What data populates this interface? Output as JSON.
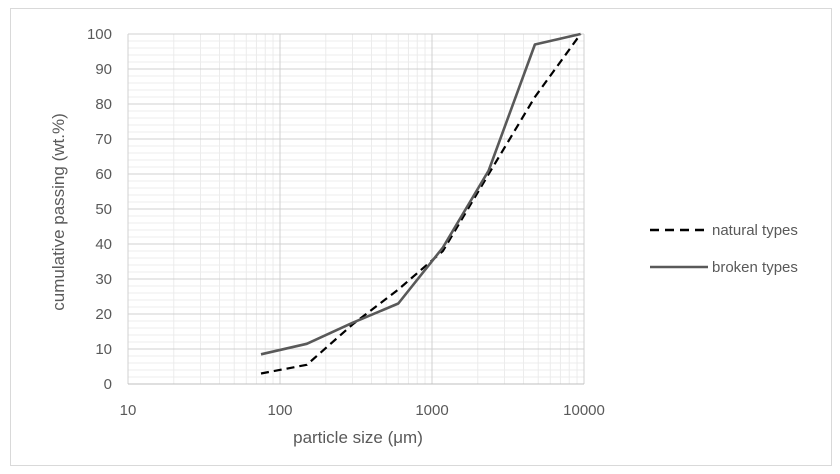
{
  "chart_data": {
    "type": "line",
    "xlabel": "particle size (μm)",
    "ylabel": "cumulative passing (wt.%)",
    "x_scale": "log",
    "xlim": [
      10,
      10000
    ],
    "ylim": [
      0,
      100
    ],
    "x_ticks": [
      10,
      100,
      1000,
      10000
    ],
    "x_tick_labels": [
      "10",
      "100",
      "1000",
      "10000"
    ],
    "y_ticks": [
      0,
      10,
      20,
      30,
      40,
      50,
      60,
      70,
      80,
      90,
      100
    ],
    "y_tick_labels": [
      "0",
      "10",
      "20",
      "30",
      "40",
      "50",
      "60",
      "70",
      "80",
      "90",
      "100"
    ],
    "grid": "major and minor",
    "legend_position": "right",
    "series": [
      {
        "name": "natural types",
        "style": "dashed",
        "color": "#000000",
        "x": [
          75,
          150,
          300,
          600,
          1180,
          2360,
          4750,
          9500
        ],
        "y": [
          3,
          5.5,
          17,
          27,
          38,
          60,
          82,
          100
        ]
      },
      {
        "name": "broken types",
        "style": "solid",
        "color": "#595959",
        "x": [
          75,
          150,
          300,
          600,
          1180,
          2360,
          4750,
          9500
        ],
        "y": [
          8.5,
          11.5,
          17.5,
          23,
          39,
          61,
          97,
          100
        ]
      }
    ]
  }
}
